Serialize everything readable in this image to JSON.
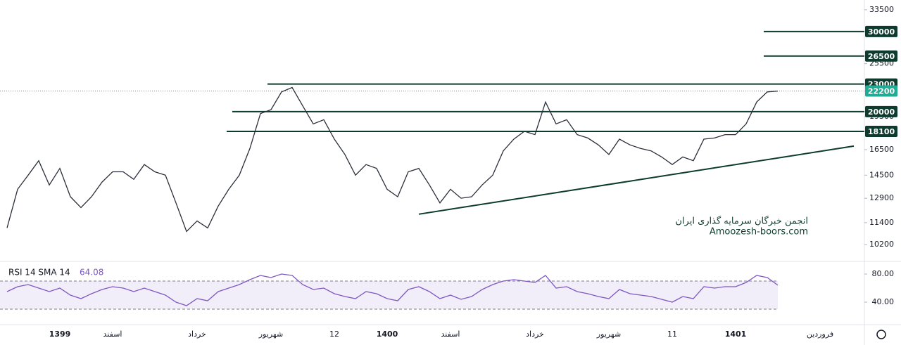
{
  "chart_data": {
    "type": "line",
    "log_scale": true,
    "categories": [
      null,
      null,
      null,
      null,
      null,
      "1399",
      null,
      null,
      null,
      null,
      "اسفند",
      null,
      null,
      null,
      null,
      null,
      null,
      null,
      "خرداد",
      null,
      null,
      null,
      null,
      null,
      null,
      "شهریور",
      null,
      null,
      null,
      null,
      null,
      "12",
      null,
      null,
      null,
      null,
      "1400",
      null,
      null,
      null,
      null,
      null,
      "اسفند",
      null,
      null,
      null,
      null,
      null,
      null,
      null,
      "خرداد",
      null,
      null,
      null,
      null,
      null,
      null,
      "شهریور",
      null,
      null,
      null,
      null,
      null,
      "11",
      null,
      null,
      null,
      null,
      null,
      "1401",
      null,
      null,
      null,
      null,
      null,
      null,
      null,
      "فروردین"
    ],
    "series": [
      {
        "color": "#2a2e39",
        "values": [
          11100,
          13500,
          14500,
          15600,
          13800,
          15000,
          13000,
          12300,
          13000,
          14000,
          14750,
          14750,
          14200,
          15300,
          14750,
          14500,
          12600,
          10900,
          11500,
          11100,
          12400,
          13500,
          14500,
          16600,
          19800,
          20200,
          22100,
          22600,
          20600,
          18800,
          19200,
          17400,
          16100,
          14500,
          15300,
          15000,
          13500,
          13000,
          14750,
          15000,
          13800,
          12600,
          13500,
          12900,
          13000,
          13800,
          14500,
          16400,
          17400,
          18100,
          17800,
          21000,
          18800,
          19200,
          17800,
          17500,
          16900,
          16100,
          17400,
          16900,
          16600,
          16400,
          15900,
          15300,
          15900,
          15600,
          17400,
          17500,
          17800,
          17800,
          18800,
          21000,
          22100,
          22200,
          null,
          null,
          null,
          null
        ]
      }
    ],
    "ylim": [
      9370,
      35200
    ],
    "yticks": [
      33500,
      25500,
      19500,
      16500,
      14500,
      12900,
      11400,
      10200
    ],
    "levels": {
      "color": "#0d3b2e",
      "values": [
        30000,
        26500,
        23000,
        20000,
        18100
      ]
    },
    "last_price_color": "#22ab94",
    "trendline": {
      "color": "#0d3b2e",
      "values": [
        11900,
        16800
      ]
    },
    "watermark": [
      "انجمن خبرگان سرمایه گذاری ایران",
      "Amoozesh-boors.com"
    ],
    "rsi": {
      "title": "RSI 14 SMA 14",
      "color": "#7e57c2",
      "ylim": [
        8,
        97
      ],
      "bands": [
        30,
        70
      ],
      "yticks": [
        {
          "value": 80,
          "label": "80.00"
        },
        {
          "value": 40,
          "label": "40.00"
        }
      ],
      "values": [
        55,
        62,
        65,
        60,
        55,
        60,
        50,
        45,
        52,
        58,
        62,
        60,
        55,
        60,
        55,
        50,
        40,
        35,
        45,
        42,
        55,
        60,
        65,
        72,
        78,
        75,
        80,
        78,
        65,
        58,
        60,
        52,
        48,
        45,
        55,
        52,
        45,
        42,
        58,
        62,
        55,
        45,
        50,
        44,
        48,
        58,
        65,
        70,
        72,
        70,
        68,
        78,
        60,
        62,
        55,
        52,
        48,
        45,
        58,
        52,
        50,
        48,
        44,
        40,
        48,
        45,
        62,
        60,
        62,
        62,
        68,
        78,
        75,
        64.08,
        null,
        null,
        null,
        null
      ]
    }
  }
}
